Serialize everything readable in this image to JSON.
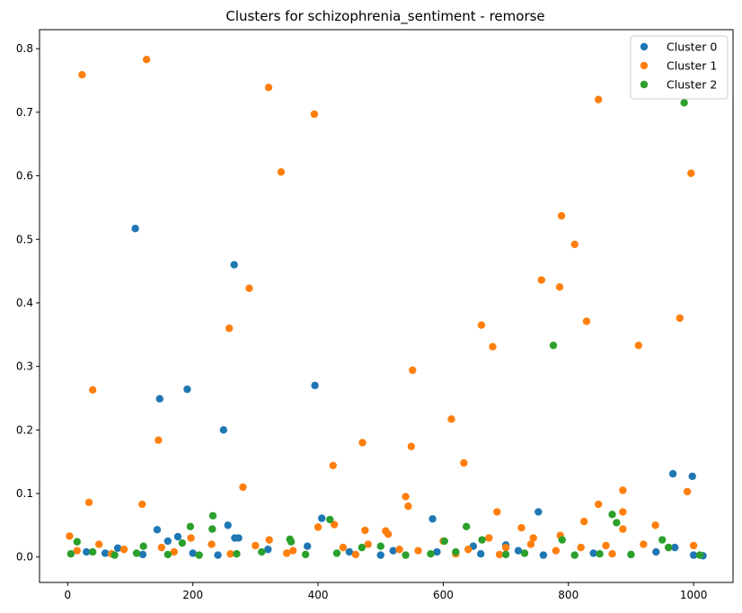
{
  "chart_data": {
    "type": "scatter",
    "title": "Clusters for schizophrenia_sentiment - remorse",
    "xlabel": "",
    "ylabel": "",
    "xlim": [
      -45,
      1063
    ],
    "ylim": [
      -0.04,
      0.83
    ],
    "xticks": [
      0,
      200,
      400,
      600,
      800,
      1000
    ],
    "yticks": [
      0.0,
      0.1,
      0.2,
      0.3,
      0.4,
      0.5,
      0.6,
      0.7,
      0.8
    ],
    "xtick_labels": [
      "0",
      "200",
      "400",
      "600",
      "800",
      "1000"
    ],
    "ytick_labels": [
      "0.0",
      "0.1",
      "0.2",
      "0.3",
      "0.4",
      "0.5",
      "0.6",
      "0.7",
      "0.8"
    ],
    "grid": false,
    "legend": "top-right",
    "series": [
      {
        "name": "Cluster 0",
        "color": "#1f77b4",
        "points": [
          [
            108,
            0.517
          ],
          [
            266,
            0.46
          ],
          [
            395,
            0.27
          ],
          [
            191,
            0.264
          ],
          [
            147,
            0.249
          ],
          [
            249,
            0.2
          ],
          [
            967,
            0.131
          ],
          [
            998,
            0.127
          ],
          [
            752,
            0.071
          ],
          [
            406,
            0.061
          ],
          [
            583,
            0.06
          ],
          [
            256,
            0.05
          ],
          [
            143,
            0.043
          ],
          [
            176,
            0.032
          ],
          [
            267,
            0.03
          ],
          [
            273,
            0.03
          ],
          [
            160,
            0.025
          ],
          [
            383,
            0.017
          ],
          [
            648,
            0.017
          ],
          [
            700,
            0.019
          ],
          [
            80,
            0.014
          ],
          [
            970,
            0.015
          ],
          [
            30,
            0.008
          ],
          [
            60,
            0.006
          ],
          [
            120,
            0.004
          ],
          [
            200,
            0.006
          ],
          [
            320,
            0.012
          ],
          [
            450,
            0.008
          ],
          [
            520,
            0.01
          ],
          [
            590,
            0.008
          ],
          [
            660,
            0.005
          ],
          [
            720,
            0.01
          ],
          [
            760,
            0.003
          ],
          [
            840,
            0.006
          ],
          [
            900,
            0.004
          ],
          [
            940,
            0.008
          ],
          [
            1000,
            0.003
          ],
          [
            1015,
            0.002
          ],
          [
            240,
            0.003
          ],
          [
            500,
            0.003
          ]
        ]
      },
      {
        "name": "Cluster 1",
        "color": "#ff7f0e",
        "points": [
          [
            23,
            0.759
          ],
          [
            126,
            0.783
          ],
          [
            321,
            0.739
          ],
          [
            394,
            0.697
          ],
          [
            848,
            0.72
          ],
          [
            341,
            0.606
          ],
          [
            996,
            0.604
          ],
          [
            789,
            0.537
          ],
          [
            810,
            0.492
          ],
          [
            290,
            0.423
          ],
          [
            757,
            0.436
          ],
          [
            786,
            0.425
          ],
          [
            829,
            0.371
          ],
          [
            978,
            0.376
          ],
          [
            258,
            0.36
          ],
          [
            661,
            0.365
          ],
          [
            679,
            0.331
          ],
          [
            912,
            0.333
          ],
          [
            551,
            0.294
          ],
          [
            40,
            0.263
          ],
          [
            613,
            0.217
          ],
          [
            145,
            0.184
          ],
          [
            471,
            0.18
          ],
          [
            549,
            0.174
          ],
          [
            633,
            0.148
          ],
          [
            424,
            0.144
          ],
          [
            280,
            0.11
          ],
          [
            887,
            0.105
          ],
          [
            990,
            0.103
          ],
          [
            540,
            0.095
          ],
          [
            34,
            0.086
          ],
          [
            119,
            0.083
          ],
          [
            848,
            0.083
          ],
          [
            544,
            0.08
          ],
          [
            686,
            0.071
          ],
          [
            887,
            0.071
          ],
          [
            825,
            0.056
          ],
          [
            426,
            0.051
          ],
          [
            939,
            0.05
          ],
          [
            400,
            0.047
          ],
          [
            725,
            0.046
          ],
          [
            887,
            0.044
          ],
          [
            475,
            0.042
          ],
          [
            508,
            0.041
          ],
          [
            512,
            0.036
          ],
          [
            787,
            0.034
          ],
          [
            3,
            0.033
          ],
          [
            197,
            0.03
          ],
          [
            744,
            0.03
          ],
          [
            673,
            0.03
          ],
          [
            322,
            0.027
          ],
          [
            15,
            0.01
          ],
          [
            50,
            0.02
          ],
          [
            90,
            0.012
          ],
          [
            150,
            0.015
          ],
          [
            230,
            0.02
          ],
          [
            300,
            0.018
          ],
          [
            360,
            0.01
          ],
          [
            440,
            0.015
          ],
          [
            480,
            0.02
          ],
          [
            530,
            0.012
          ],
          [
            560,
            0.01
          ],
          [
            600,
            0.025
          ],
          [
            640,
            0.012
          ],
          [
            700,
            0.015
          ],
          [
            740,
            0.02
          ],
          [
            780,
            0.01
          ],
          [
            820,
            0.015
          ],
          [
            860,
            0.018
          ],
          [
            920,
            0.02
          ],
          [
            960,
            0.015
          ],
          [
            1000,
            0.018
          ],
          [
            70,
            0.005
          ],
          [
            170,
            0.008
          ],
          [
            260,
            0.005
          ],
          [
            350,
            0.006
          ],
          [
            460,
            0.004
          ],
          [
            620,
            0.005
          ],
          [
            690,
            0.004
          ],
          [
            870,
            0.005
          ]
        ]
      },
      {
        "name": "Cluster 2",
        "color": "#2ca02c",
        "points": [
          [
            985,
            0.715
          ],
          [
            776,
            0.333
          ],
          [
            232,
            0.065
          ],
          [
            419,
            0.059
          ],
          [
            877,
            0.054
          ],
          [
            870,
            0.067
          ],
          [
            196,
            0.048
          ],
          [
            637,
            0.048
          ],
          [
            231,
            0.044
          ],
          [
            355,
            0.028
          ],
          [
            357,
            0.024
          ],
          [
            602,
            0.025
          ],
          [
            662,
            0.027
          ],
          [
            790,
            0.027
          ],
          [
            950,
            0.027
          ],
          [
            15,
            0.024
          ],
          [
            183,
            0.022
          ],
          [
            121,
            0.017
          ],
          [
            500,
            0.017
          ],
          [
            960,
            0.015
          ],
          [
            5,
            0.005
          ],
          [
            40,
            0.008
          ],
          [
            75,
            0.003
          ],
          [
            110,
            0.006
          ],
          [
            160,
            0.004
          ],
          [
            210,
            0.003
          ],
          [
            270,
            0.005
          ],
          [
            310,
            0.008
          ],
          [
            380,
            0.004
          ],
          [
            430,
            0.006
          ],
          [
            470,
            0.015
          ],
          [
            540,
            0.003
          ],
          [
            580,
            0.005
          ],
          [
            620,
            0.008
          ],
          [
            700,
            0.004
          ],
          [
            730,
            0.006
          ],
          [
            810,
            0.003
          ],
          [
            850,
            0.005
          ],
          [
            900,
            0.004
          ],
          [
            1010,
            0.003
          ]
        ]
      }
    ]
  }
}
